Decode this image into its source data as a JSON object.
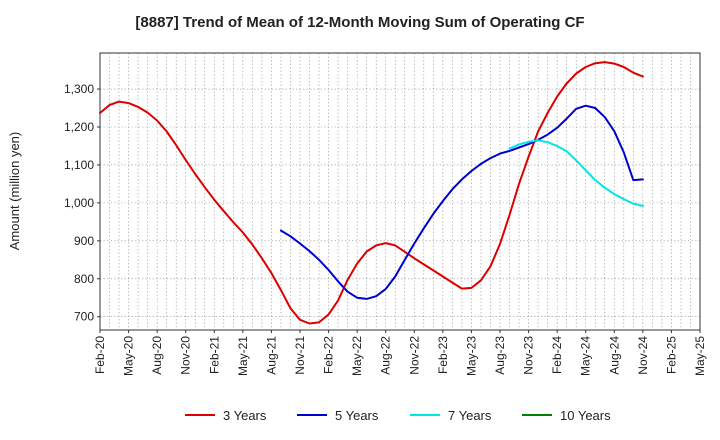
{
  "chart_data": {
    "type": "line",
    "title": "[8887]  Trend of Mean of 12-Month Moving Sum of Operating CF",
    "xlabel": "",
    "ylabel": "Amount (million yen)",
    "ylim": [
      665,
      1395
    ],
    "y_ticks": [
      700,
      800,
      900,
      "1,000",
      "1,100",
      "1,200",
      "1,300"
    ],
    "y_tick_values": [
      700,
      800,
      900,
      1000,
      1100,
      1200,
      1300
    ],
    "x_ticks": [
      "Feb-20",
      "May-20",
      "Aug-20",
      "Nov-20",
      "Feb-21",
      "May-21",
      "Aug-21",
      "Nov-21",
      "Feb-22",
      "May-22",
      "Aug-22",
      "Nov-22",
      "Feb-23",
      "May-23",
      "Aug-23",
      "Nov-23",
      "Feb-24",
      "May-24",
      "Aug-24",
      "Nov-24",
      "Feb-25",
      "May-25"
    ],
    "x_range_months": [
      0,
      63
    ],
    "grid": true,
    "legend_position": "bottom",
    "series": [
      {
        "name": "3 Years",
        "color": "#dd0000",
        "x_months": [
          0,
          1,
          2,
          3,
          4,
          5,
          6,
          7,
          8,
          9,
          10,
          11,
          12,
          13,
          14,
          15,
          16,
          17,
          18,
          19,
          20,
          21,
          22,
          23,
          24,
          25,
          26,
          27,
          28,
          29,
          30,
          31,
          32,
          33,
          34,
          35,
          36,
          37,
          38,
          39,
          40,
          41,
          42,
          43,
          44,
          45,
          46,
          47,
          48,
          49,
          50,
          51,
          52,
          53,
          54,
          55,
          56,
          57
        ],
        "values": [
          1237,
          1258,
          1267,
          1263,
          1253,
          1238,
          1217,
          1188,
          1152,
          1113,
          1076,
          1041,
          1008,
          978,
          949,
          922,
          890,
          854,
          815,
          770,
          722,
          692,
          682,
          685,
          706,
          743,
          797,
          840,
          872,
          888,
          894,
          888,
          871,
          854,
          838,
          822,
          806,
          790,
          774,
          776,
          796,
          833,
          892,
          968,
          1050,
          1122,
          1188,
          1237,
          1280,
          1315,
          1341,
          1358,
          1368,
          1371,
          1367,
          1358,
          1343,
          1333
        ]
      },
      {
        "name": "5 Years",
        "color": "#0000cc",
        "x_months": [
          19,
          20,
          21,
          22,
          23,
          24,
          25,
          26,
          27,
          28,
          29,
          30,
          31,
          32,
          33,
          34,
          35,
          36,
          37,
          38,
          39,
          40,
          41,
          42,
          43,
          44,
          45,
          46,
          47,
          48,
          49,
          50,
          51,
          52,
          53,
          54,
          55,
          56,
          57
        ],
        "values": [
          927,
          912,
          893,
          873,
          850,
          823,
          793,
          766,
          750,
          747,
          754,
          773,
          806,
          850,
          893,
          933,
          971,
          1005,
          1036,
          1062,
          1084,
          1103,
          1118,
          1130,
          1137,
          1146,
          1155,
          1166,
          1180,
          1198,
          1222,
          1248,
          1256,
          1250,
          1226,
          1189,
          1133,
          1060,
          1062
        ]
      },
      {
        "name": "7 Years",
        "color": "#00e5e5",
        "x_months": [
          43,
          44,
          45,
          46,
          47,
          48,
          49,
          50,
          51,
          52,
          53,
          54,
          55,
          56,
          57
        ],
        "values": [
          1143,
          1154,
          1161,
          1165,
          1160,
          1150,
          1136,
          1112,
          1086,
          1060,
          1040,
          1023,
          1010,
          998,
          992
        ]
      },
      {
        "name": "10 Years",
        "color": "#008000",
        "x_months": [],
        "values": []
      }
    ]
  }
}
